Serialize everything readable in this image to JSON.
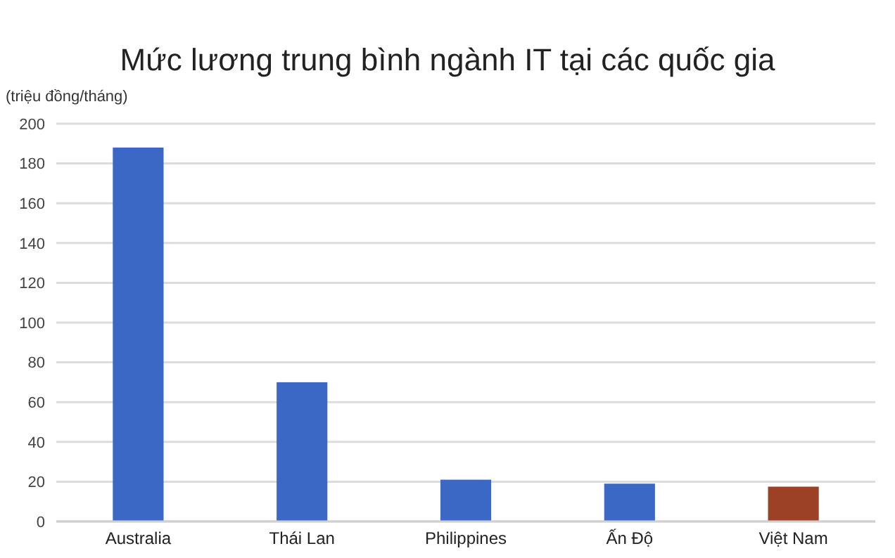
{
  "chart_data": {
    "type": "bar",
    "title": "Mức lương trung bình ngành IT tại các quốc gia",
    "ylabel": "(triệu đồng/tháng)",
    "categories": [
      "Australia",
      "Thái Lan",
      "Philippines",
      "Ấn Độ",
      "Việt Nam"
    ],
    "values": [
      188,
      70,
      21,
      19,
      17.5
    ],
    "colors": [
      "#3a68c4",
      "#3a68c4",
      "#3a68c4",
      "#3a68c4",
      "#9c4126"
    ],
    "ylim": [
      0,
      200
    ],
    "yticks": [
      0,
      20,
      40,
      60,
      80,
      100,
      120,
      140,
      160,
      180,
      200
    ],
    "grid": "y"
  }
}
